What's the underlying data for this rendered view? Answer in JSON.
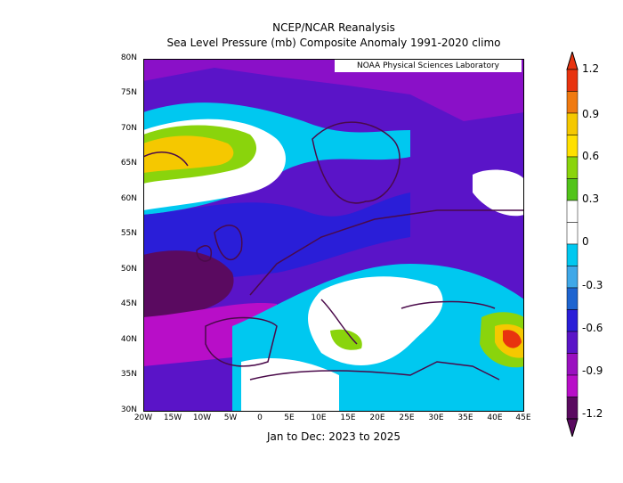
{
  "title_line1": "NCEP/NCAR Reanalysis",
  "title_line2": "Sea Level Pressure (mb) Composite Anomaly 1991-2020 climo",
  "footer": "Jan to Dec: 2023 to 2025",
  "credit": "NOAA Physical Sciences Laboratory",
  "map": {
    "lon_range": [
      -20,
      45
    ],
    "lat_range": [
      30,
      80
    ],
    "lat_labels": [
      "80N",
      "75N",
      "70N",
      "65N",
      "60N",
      "55N",
      "50N",
      "45N",
      "40N",
      "35N",
      "30N"
    ],
    "lon_labels": [
      "20W",
      "15W",
      "10W",
      "5W",
      "0",
      "5E",
      "10E",
      "15E",
      "20E",
      "25E",
      "30E",
      "35E",
      "40E",
      "45E"
    ]
  },
  "colorbar": {
    "labels": [
      "1.2",
      "0.9",
      "0.6",
      "0.3",
      "0",
      "-0.3",
      "-0.6",
      "-0.9",
      "-1.2"
    ],
    "colors": [
      "#e8330f",
      "#f07a10",
      "#f5c800",
      "#ffe000",
      "#8ad40c",
      "#52c41a",
      "#ffffff",
      "#ffffff",
      "#00c8f0",
      "#3fa8e8",
      "#1e64d0",
      "#2a1ed8",
      "#5a14c8",
      "#9a10c0",
      "#b80ec8",
      "#5a0a60"
    ]
  }
}
